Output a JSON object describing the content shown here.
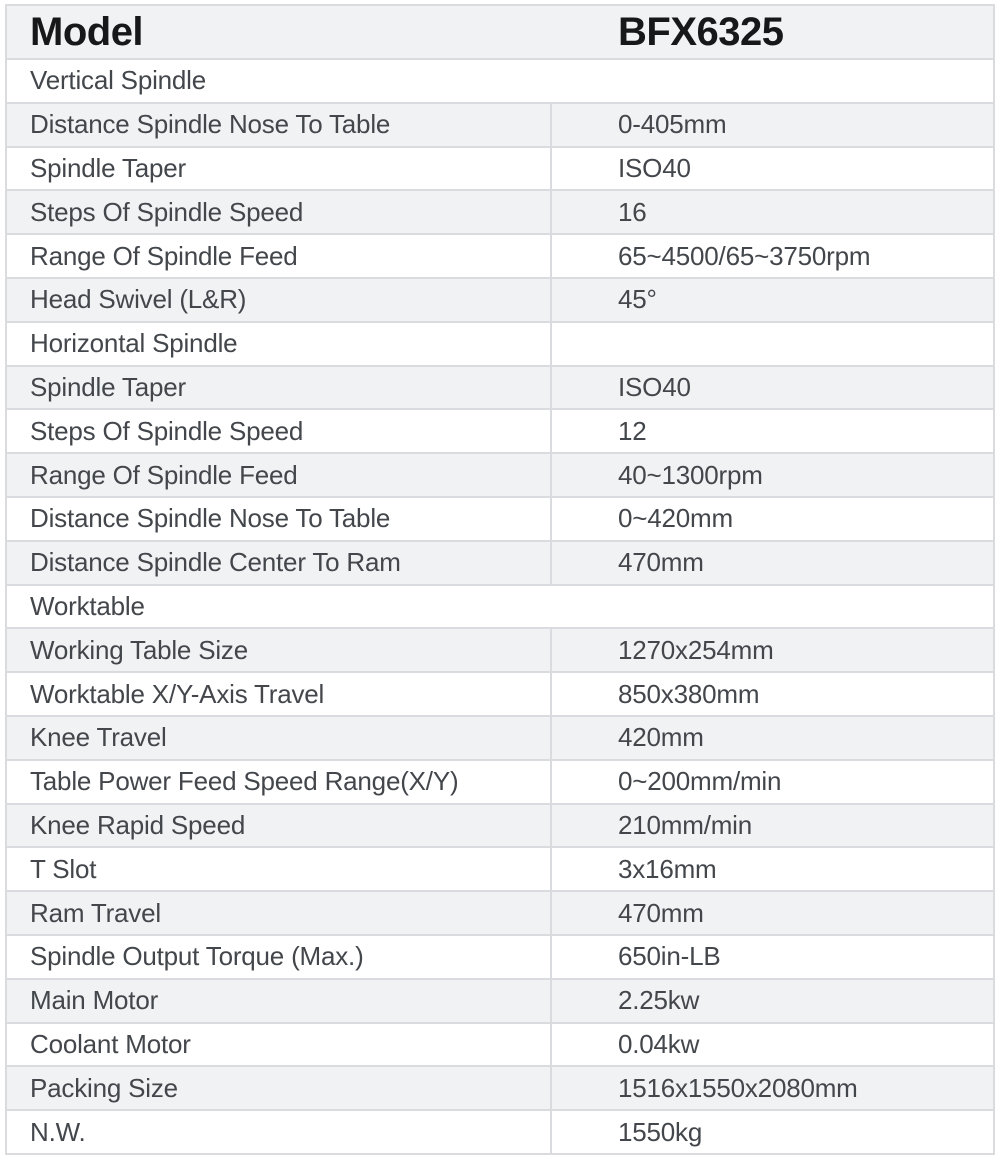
{
  "table": {
    "header": {
      "label": "Model",
      "value": "BFX6325"
    },
    "colors": {
      "alt_row_bg": "#f1f2f4",
      "border": "#d9dbde",
      "label_text": "#43474b",
      "header_text": "#17181a"
    },
    "rows": [
      {
        "type": "section",
        "label": "Vertical Spindle",
        "value": ""
      },
      {
        "type": "data",
        "label": "Distance Spindle Nose To Table",
        "value": "0-405mm"
      },
      {
        "type": "data",
        "label": "Spindle Taper",
        "value": "ISO40"
      },
      {
        "type": "data",
        "label": "Steps Of Spindle Speed",
        "value": "16"
      },
      {
        "type": "data",
        "label": "Range Of Spindle Feed",
        "value": "65~4500/65~3750rpm"
      },
      {
        "type": "data",
        "label": "Head Swivel (L&R)",
        "value": "45°"
      },
      {
        "type": "data",
        "label": "Horizontal Spindle",
        "value": ""
      },
      {
        "type": "data",
        "label": "Spindle Taper",
        "value": "ISO40"
      },
      {
        "type": "data",
        "label": "Steps Of Spindle Speed",
        "value": "12"
      },
      {
        "type": "data",
        "label": "Range Of Spindle Feed",
        "value": "40~1300rpm"
      },
      {
        "type": "data",
        "label": "Distance Spindle Nose To Table",
        "value": "0~420mm"
      },
      {
        "type": "data",
        "label": "Distance Spindle Center To Ram",
        "value": "470mm"
      },
      {
        "type": "section",
        "label": "Worktable",
        "value": ""
      },
      {
        "type": "data",
        "label": "Working Table Size",
        "value": "1270x254mm"
      },
      {
        "type": "data",
        "label": "Worktable X/Y-Axis Travel",
        "value": "850x380mm"
      },
      {
        "type": "data",
        "label": "Knee Travel",
        "value": "420mm"
      },
      {
        "type": "data",
        "label": "Table Power Feed Speed Range(X/Y)",
        "value": "0~200mm/min"
      },
      {
        "type": "data",
        "label": "Knee Rapid Speed",
        "value": "210mm/min"
      },
      {
        "type": "data",
        "label": "T Slot",
        "value": "3x16mm"
      },
      {
        "type": "data",
        "label": "Ram Travel",
        "value": "470mm"
      },
      {
        "type": "data",
        "label": "Spindle Output Torque (Max.)",
        "value": "650in-LB"
      },
      {
        "type": "data",
        "label": "Main Motor",
        "value": "2.25kw"
      },
      {
        "type": "data",
        "label": "Coolant Motor",
        "value": "0.04kw"
      },
      {
        "type": "data",
        "label": "Packing Size",
        "value": "1516x1550x2080mm"
      },
      {
        "type": "data",
        "label": "N.W.",
        "value": "1550kg"
      }
    ]
  }
}
